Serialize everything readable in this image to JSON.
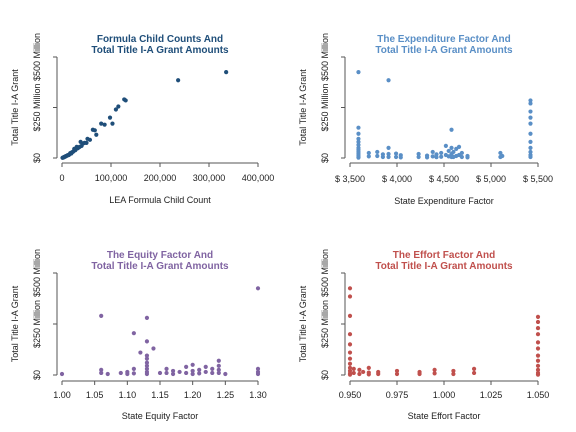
{
  "chart_data": [
    {
      "type": "scatter",
      "title_lines": [
        "Formula Child Counts And",
        "Total Title I-A Grant Amounts"
      ],
      "xlabel": "LEA Formula Child Count",
      "ylabel": "Total Title I-A Grant",
      "color": "#1f4e79",
      "xlim": [
        0,
        400000
      ],
      "ylim": [
        0,
        500
      ],
      "xticks": [
        {
          "v": 0,
          "label": "0"
        },
        {
          "v": 100000,
          "label": "100,000"
        },
        {
          "v": 200000,
          "label": "200,000"
        },
        {
          "v": 300000,
          "label": "300,000"
        },
        {
          "v": 400000,
          "label": "400,000"
        }
      ],
      "yticks": [
        {
          "v": 0,
          "label": "$0"
        },
        {
          "v": 250,
          "label": "$250 Million"
        },
        {
          "v": 500,
          "label": "$500 Million"
        }
      ],
      "points": [
        [
          335000,
          425
        ],
        [
          237000,
          385
        ],
        [
          130000,
          285
        ],
        [
          127000,
          290
        ],
        [
          115000,
          255
        ],
        [
          110000,
          240
        ],
        [
          103000,
          170
        ],
        [
          98000,
          200
        ],
        [
          87000,
          165
        ],
        [
          80000,
          170
        ],
        [
          70000,
          115
        ],
        [
          67000,
          137
        ],
        [
          63000,
          140
        ],
        [
          57000,
          90
        ],
        [
          52000,
          95
        ],
        [
          50000,
          75
        ],
        [
          46000,
          75
        ],
        [
          43000,
          72
        ],
        [
          40000,
          60
        ],
        [
          38000,
          80
        ],
        [
          36000,
          55
        ],
        [
          34000,
          52
        ],
        [
          32000,
          48
        ],
        [
          30000,
          55
        ],
        [
          28000,
          42
        ],
        [
          27000,
          38
        ],
        [
          25000,
          45
        ],
        [
          23000,
          32
        ],
        [
          22000,
          30
        ],
        [
          20000,
          28
        ],
        [
          19000,
          22
        ],
        [
          17000,
          24
        ],
        [
          15000,
          18
        ],
        [
          14000,
          15
        ],
        [
          12000,
          14
        ],
        [
          11000,
          13
        ],
        [
          9000,
          10
        ],
        [
          8000,
          9
        ],
        [
          7000,
          8
        ],
        [
          6000,
          7
        ],
        [
          5000,
          5
        ],
        [
          4000,
          4
        ],
        [
          3000,
          3
        ],
        [
          2000,
          2
        ],
        [
          1000,
          1
        ]
      ]
    },
    {
      "type": "scatter",
      "title_lines": [
        "The Expenditure Factor And",
        "Total Title I-A Grant Amounts"
      ],
      "xlabel": "State Expenditure Factor",
      "ylabel": "Total Title I-A Grant",
      "color": "#5a8fc6",
      "xlim": [
        3500,
        5500
      ],
      "ylim": [
        0,
        500
      ],
      "xticks": [
        {
          "v": 3500,
          "label": "$ 3,500"
        },
        {
          "v": 4000,
          "label": "$ 4,000"
        },
        {
          "v": 4500,
          "label": "$ 4,500"
        },
        {
          "v": 5000,
          "label": "$ 5,000"
        },
        {
          "v": 5500,
          "label": "$ 5,500"
        }
      ],
      "yticks": [
        {
          "v": 0,
          "label": "$0"
        },
        {
          "v": 250,
          "label": "$250 Million"
        },
        {
          "v": 500,
          "label": "$500 Million"
        }
      ],
      "points": [
        [
          3590,
          425
        ],
        [
          3590,
          150
        ],
        [
          3590,
          120
        ],
        [
          3590,
          95
        ],
        [
          3590,
          80
        ],
        [
          3590,
          65
        ],
        [
          3590,
          50
        ],
        [
          3590,
          40
        ],
        [
          3590,
          30
        ],
        [
          3590,
          20
        ],
        [
          3590,
          10
        ],
        [
          3590,
          2
        ],
        [
          3910,
          385
        ],
        [
          3910,
          50
        ],
        [
          3910,
          20
        ],
        [
          3910,
          5
        ],
        [
          4580,
          140
        ],
        [
          4580,
          50
        ],
        [
          4580,
          20
        ],
        [
          4580,
          5
        ],
        [
          5420,
          285
        ],
        [
          5420,
          270
        ],
        [
          5420,
          230
        ],
        [
          5420,
          200
        ],
        [
          5420,
          170
        ],
        [
          5420,
          120
        ],
        [
          5420,
          80
        ],
        [
          5420,
          50
        ],
        [
          5420,
          30
        ],
        [
          5420,
          15
        ],
        [
          5420,
          5
        ],
        [
          3700,
          25
        ],
        [
          3700,
          8
        ],
        [
          3790,
          30
        ],
        [
          3790,
          10
        ],
        [
          3850,
          18
        ],
        [
          3850,
          5
        ],
        [
          3990,
          22
        ],
        [
          3990,
          5
        ],
        [
          4040,
          14
        ],
        [
          4040,
          3
        ],
        [
          4230,
          20
        ],
        [
          4230,
          5
        ],
        [
          4320,
          12
        ],
        [
          4320,
          3
        ],
        [
          4380,
          30
        ],
        [
          4380,
          8
        ],
        [
          4420,
          18
        ],
        [
          4420,
          4
        ],
        [
          4470,
          25
        ],
        [
          4470,
          6
        ],
        [
          4520,
          60
        ],
        [
          4520,
          15
        ],
        [
          4550,
          35
        ],
        [
          4550,
          8
        ],
        [
          4600,
          30
        ],
        [
          4600,
          5
        ],
        [
          4630,
          45
        ],
        [
          4630,
          10
        ],
        [
          4660,
          55
        ],
        [
          4660,
          15
        ],
        [
          4690,
          25
        ],
        [
          4690,
          5
        ],
        [
          4750,
          10
        ],
        [
          4750,
          3
        ],
        [
          5100,
          25
        ],
        [
          5100,
          5
        ],
        [
          5120,
          10
        ]
      ]
    },
    {
      "type": "scatter",
      "title_lines": [
        "The Equity Factor And",
        "Total Title I-A Grant Amounts"
      ],
      "xlabel": "State Equity Factor",
      "ylabel": "Total Title I-A Grant",
      "color": "#8064a2",
      "xlim": [
        1.0,
        1.3
      ],
      "ylim": [
        0,
        500
      ],
      "xticks": [
        {
          "v": 1.0,
          "label": "1.00"
        },
        {
          "v": 1.05,
          "label": "1.05"
        },
        {
          "v": 1.1,
          "label": "1.10"
        },
        {
          "v": 1.15,
          "label": "1.15"
        },
        {
          "v": 1.2,
          "label": "1.20"
        },
        {
          "v": 1.25,
          "label": "1.25"
        },
        {
          "v": 1.3,
          "label": "1.30"
        }
      ],
      "yticks": [
        {
          "v": 0,
          "label": "$0"
        },
        {
          "v": 250,
          "label": "$250 Million"
        },
        {
          "v": 500,
          "label": "$500 Million"
        }
      ],
      "points": [
        [
          1.3,
          425
        ],
        [
          1.06,
          290
        ],
        [
          1.13,
          280
        ],
        [
          1.11,
          205
        ],
        [
          1.13,
          165
        ],
        [
          1.14,
          130
        ],
        [
          1.12,
          110
        ],
        [
          1.13,
          95
        ],
        [
          1.13,
          80
        ],
        [
          1.13,
          60
        ],
        [
          1.13,
          45
        ],
        [
          1.13,
          30
        ],
        [
          1.13,
          15
        ],
        [
          1.13,
          5
        ],
        [
          1.0,
          5
        ],
        [
          1.06,
          25
        ],
        [
          1.06,
          10
        ],
        [
          1.07,
          5
        ],
        [
          1.09,
          10
        ],
        [
          1.1,
          15
        ],
        [
          1.1,
          5
        ],
        [
          1.11,
          30
        ],
        [
          1.11,
          8
        ],
        [
          1.15,
          10
        ],
        [
          1.16,
          30
        ],
        [
          1.16,
          10
        ],
        [
          1.17,
          20
        ],
        [
          1.17,
          5
        ],
        [
          1.18,
          15
        ],
        [
          1.19,
          40
        ],
        [
          1.19,
          10
        ],
        [
          1.2,
          50
        ],
        [
          1.2,
          20
        ],
        [
          1.2,
          5
        ],
        [
          1.21,
          25
        ],
        [
          1.21,
          8
        ],
        [
          1.22,
          40
        ],
        [
          1.22,
          15
        ],
        [
          1.23,
          30
        ],
        [
          1.23,
          10
        ],
        [
          1.24,
          70
        ],
        [
          1.24,
          45
        ],
        [
          1.24,
          25
        ],
        [
          1.24,
          10
        ],
        [
          1.25,
          5
        ],
        [
          1.3,
          30
        ],
        [
          1.3,
          15
        ],
        [
          1.3,
          5
        ]
      ]
    },
    {
      "type": "scatter",
      "title_lines": [
        "The Effort Factor And",
        "Total Title I-A Grant Amounts"
      ],
      "xlabel": "State Effort Factor",
      "ylabel": "Total Title I-A Grant",
      "color": "#c0504d",
      "xlim": [
        0.95,
        1.05
      ],
      "ylim": [
        0,
        500
      ],
      "xticks": [
        {
          "v": 0.95,
          "label": "0.950"
        },
        {
          "v": 0.975,
          "label": "0.975"
        },
        {
          "v": 1.0,
          "label": "1.000"
        },
        {
          "v": 1.025,
          "label": "1.025"
        },
        {
          "v": 1.05,
          "label": "1.050"
        }
      ],
      "yticks": [
        {
          "v": 0,
          "label": "$0"
        },
        {
          "v": 250,
          "label": "$250 Million"
        },
        {
          "v": 500,
          "label": "$500 Million"
        }
      ],
      "points": [
        [
          0.95,
          425
        ],
        [
          0.95,
          385
        ],
        [
          0.95,
          290
        ],
        [
          0.95,
          200
        ],
        [
          0.95,
          150
        ],
        [
          0.95,
          110
        ],
        [
          0.95,
          80
        ],
        [
          0.95,
          55
        ],
        [
          0.95,
          35
        ],
        [
          0.95,
          20
        ],
        [
          0.95,
          8
        ],
        [
          0.95,
          2
        ],
        [
          1.05,
          285
        ],
        [
          1.05,
          260
        ],
        [
          1.05,
          230
        ],
        [
          1.05,
          200
        ],
        [
          1.05,
          160
        ],
        [
          1.05,
          130
        ],
        [
          1.05,
          95
        ],
        [
          1.05,
          70
        ],
        [
          1.05,
          45
        ],
        [
          1.05,
          25
        ],
        [
          1.05,
          10
        ],
        [
          1.05,
          2
        ],
        [
          0.952,
          30
        ],
        [
          0.952,
          10
        ],
        [
          0.955,
          25
        ],
        [
          0.955,
          5
        ],
        [
          0.957,
          15
        ],
        [
          0.96,
          35
        ],
        [
          0.96,
          12
        ],
        [
          0.96,
          3
        ],
        [
          0.965,
          15
        ],
        [
          0.965,
          5
        ],
        [
          0.975,
          20
        ],
        [
          0.975,
          5
        ],
        [
          0.987,
          15
        ],
        [
          0.987,
          5
        ],
        [
          0.995,
          25
        ],
        [
          0.995,
          8
        ],
        [
          1.005,
          20
        ],
        [
          1.005,
          5
        ],
        [
          1.016,
          30
        ],
        [
          1.016,
          10
        ]
      ]
    }
  ]
}
